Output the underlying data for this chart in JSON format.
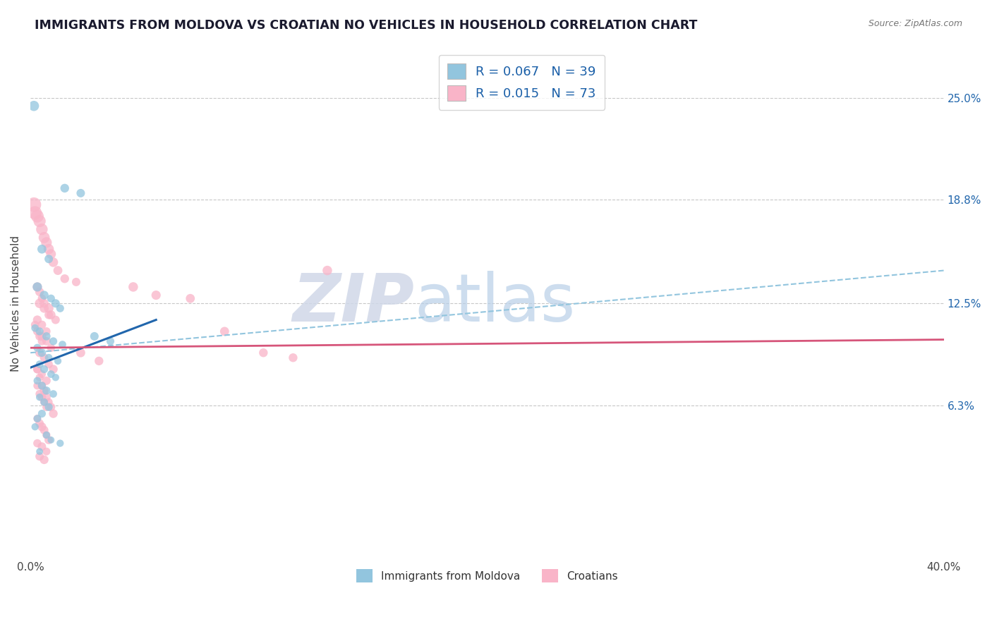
{
  "title": "IMMIGRANTS FROM MOLDOVA VS CROATIAN NO VEHICLES IN HOUSEHOLD CORRELATION CHART",
  "source": "Source: ZipAtlas.com",
  "ylabel": "No Vehicles in Household",
  "ytick_labels": [
    "6.3%",
    "12.5%",
    "18.8%",
    "25.0%"
  ],
  "ytick_values": [
    6.3,
    12.5,
    18.8,
    25.0
  ],
  "xmin": 0.0,
  "xmax": 40.0,
  "ymin": -3.0,
  "ymax": 28.0,
  "legend1_r": "0.067",
  "legend1_n": "39",
  "legend2_r": "0.015",
  "legend2_n": "73",
  "legend1_label": "Immigrants from Moldova",
  "legend2_label": "Croatians",
  "blue_color": "#92c5de",
  "pink_color": "#f9b4c8",
  "blue_line_color": "#2166ac",
  "pink_line_color": "#d6557a",
  "dashed_line_color": "#92c5de",
  "background_color": "#ffffff",
  "watermark": "ZIPatlas",
  "watermark_color": "#ccd9ea",
  "blue_scatter_x": [
    0.15,
    0.5,
    0.8,
    1.5,
    2.2,
    0.3,
    0.6,
    0.9,
    1.1,
    1.3,
    0.2,
    0.4,
    0.7,
    1.0,
    1.4,
    0.3,
    0.5,
    0.8,
    1.2,
    0.4,
    0.6,
    0.9,
    1.1,
    0.3,
    0.5,
    0.7,
    1.0,
    0.4,
    0.6,
    0.8,
    0.2,
    0.3,
    0.5,
    0.7,
    0.9,
    1.3,
    0.4,
    2.8,
    3.5
  ],
  "blue_scatter_y": [
    24.5,
    15.8,
    15.2,
    19.5,
    19.2,
    13.5,
    13.0,
    12.8,
    12.5,
    12.2,
    11.0,
    10.8,
    10.5,
    10.2,
    10.0,
    9.8,
    9.5,
    9.2,
    9.0,
    8.8,
    8.5,
    8.2,
    8.0,
    7.8,
    7.5,
    7.2,
    7.0,
    6.8,
    6.5,
    6.2,
    5.0,
    5.5,
    5.8,
    4.5,
    4.2,
    4.0,
    3.5,
    10.5,
    10.2
  ],
  "blue_scatter_sizes": [
    110,
    85,
    75,
    80,
    75,
    90,
    80,
    65,
    75,
    65,
    60,
    65,
    70,
    65,
    60,
    65,
    70,
    60,
    55,
    60,
    65,
    60,
    55,
    60,
    65,
    70,
    60,
    55,
    60,
    65,
    55,
    60,
    65,
    55,
    50,
    55,
    50,
    75,
    65
  ],
  "pink_scatter_x": [
    0.15,
    0.2,
    0.3,
    0.4,
    0.5,
    0.6,
    0.7,
    0.8,
    0.9,
    1.0,
    1.2,
    1.5,
    2.0,
    0.3,
    0.4,
    0.5,
    0.6,
    0.8,
    0.9,
    1.1,
    0.2,
    0.3,
    0.5,
    0.7,
    0.9,
    0.4,
    0.6,
    0.8,
    1.0,
    0.4,
    0.6,
    0.8,
    0.3,
    0.5,
    0.7,
    4.5,
    5.5,
    7.0,
    8.5,
    10.2,
    11.5,
    13.0,
    0.3,
    0.4,
    0.5,
    0.6,
    0.7,
    0.8,
    0.9,
    1.0,
    0.3,
    0.4,
    0.5,
    0.6,
    0.7,
    0.8,
    0.3,
    0.5,
    0.7,
    0.4,
    0.6,
    0.3,
    0.5,
    0.7,
    2.2,
    3.0,
    0.4,
    0.5,
    0.3,
    0.4,
    0.5,
    0.6,
    0.7
  ],
  "pink_scatter_y": [
    18.5,
    18.0,
    17.8,
    17.5,
    17.0,
    16.5,
    16.2,
    15.8,
    15.5,
    15.0,
    14.5,
    14.0,
    13.8,
    13.5,
    13.2,
    12.8,
    12.5,
    12.2,
    11.8,
    11.5,
    11.2,
    10.8,
    10.5,
    10.2,
    9.8,
    9.5,
    9.2,
    8.8,
    8.5,
    12.5,
    12.2,
    11.8,
    11.5,
    11.2,
    10.8,
    13.5,
    13.0,
    12.8,
    10.8,
    9.5,
    9.2,
    14.5,
    8.5,
    8.0,
    7.5,
    7.2,
    6.8,
    6.5,
    6.2,
    5.8,
    5.5,
    5.2,
    5.0,
    4.8,
    4.5,
    4.2,
    4.0,
    3.8,
    3.5,
    3.2,
    3.0,
    8.5,
    8.2,
    7.8,
    9.5,
    9.0,
    10.5,
    10.2,
    7.5,
    7.0,
    6.8,
    6.5,
    6.2
  ],
  "pink_scatter_sizes": [
    220,
    190,
    170,
    155,
    140,
    130,
    120,
    110,
    100,
    95,
    85,
    80,
    75,
    90,
    80,
    70,
    85,
    95,
    85,
    75,
    70,
    75,
    80,
    75,
    70,
    80,
    75,
    70,
    80,
    95,
    85,
    75,
    80,
    75,
    70,
    95,
    90,
    85,
    85,
    80,
    80,
    95,
    70,
    65,
    75,
    80,
    75,
    65,
    75,
    80,
    65,
    75,
    80,
    75,
    65,
    75,
    70,
    75,
    65,
    75,
    80,
    75,
    65,
    75,
    85,
    80,
    75,
    70,
    65,
    70,
    75,
    65,
    70
  ],
  "blue_trendline_x0": 0.0,
  "blue_trendline_y0": 8.6,
  "blue_trendline_x1": 5.5,
  "blue_trendline_y1": 11.5,
  "pink_trendline_x0": 0.0,
  "pink_trendline_y0": 9.8,
  "pink_trendline_x1": 40.0,
  "pink_trendline_y1": 10.3,
  "dashed_x0": 0.0,
  "dashed_y0": 9.5,
  "dashed_x1": 40.0,
  "dashed_y1": 14.5
}
